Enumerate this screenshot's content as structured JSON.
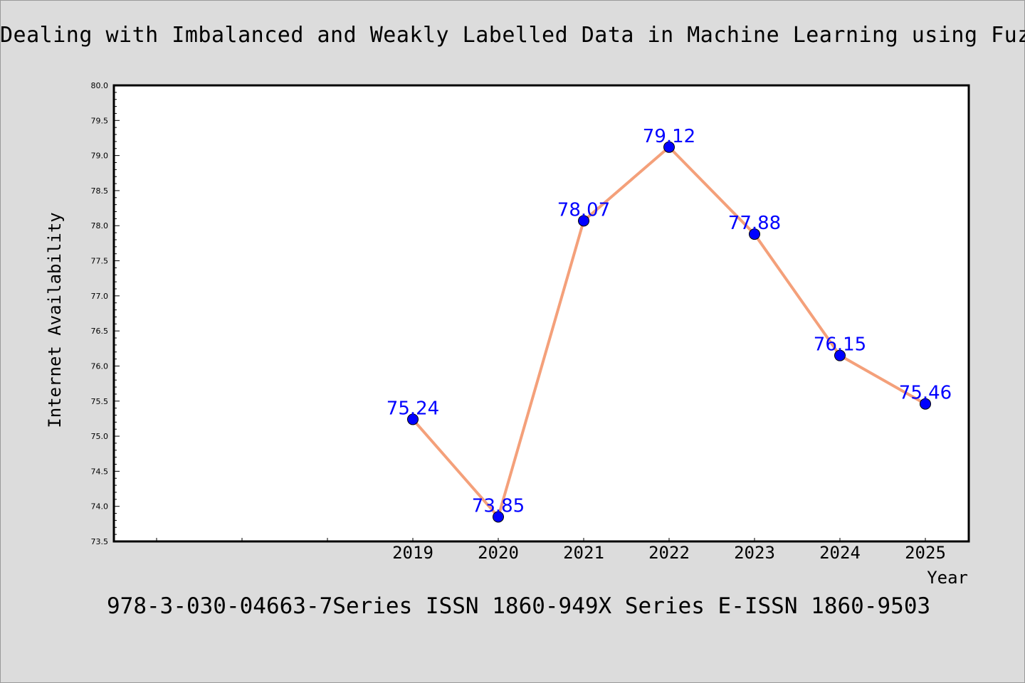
{
  "chart_data": {
    "type": "line",
    "title": "Dealing with Imbalanced and Weakly Labelled Data in Machine Learning using Fuzzy",
    "xlabel": "Year",
    "ylabel": "Internet Availability",
    "x": [
      "2019",
      "2020",
      "2021",
      "2022",
      "2023",
      "2024",
      "2025"
    ],
    "series": [
      {
        "values": [
          75.24,
          73.85,
          78.07,
          79.12,
          77.88,
          76.15,
          75.46
        ]
      }
    ],
    "data_labels": [
      "75.24",
      "73.85",
      "78.07",
      "79.12",
      "77.88",
      "76.15",
      "75.46"
    ],
    "ylim": [
      73.5,
      80.0
    ],
    "yticks": [
      "73.5",
      "74.0",
      "74.5",
      "75.0",
      "75.5",
      "76.0",
      "76.5",
      "77.0",
      "77.5",
      "78.0",
      "78.5",
      "79.0",
      "79.5",
      "80.0"
    ],
    "grid": false,
    "line_color": "#f4a07a",
    "marker_color": "#0000ff",
    "label_color": "#0000ff"
  },
  "footer": "978-3-030-04663-7Series ISSN 1860-949X Series E-ISSN 1860-9503"
}
